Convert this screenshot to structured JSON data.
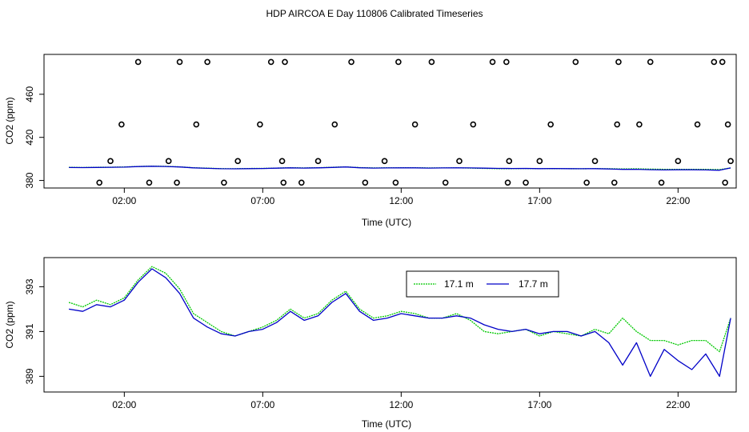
{
  "title": "HDP AIRCOA E  Day 110806  Calibrated Timeseries",
  "chart_data": [
    {
      "type": "scatter",
      "xlabel": "Time (UTC)",
      "ylabel": "CO2 (ppm)",
      "xlim": [
        -0.9,
        24.1
      ],
      "ylim": [
        373,
        497
      ],
      "xticks": [
        2,
        7,
        12,
        17,
        22
      ],
      "xtick_labels": [
        "02:00",
        "07:00",
        "12:00",
        "17:00",
        "22:00"
      ],
      "yticks": [
        380,
        420,
        460
      ],
      "yticks_labels": [
        "380",
        "420",
        "460"
      ],
      "grid": false,
      "series": [
        {
          "color": "#00c800",
          "x": [
            0,
            0.5,
            1,
            1.5,
            2,
            2.5,
            3,
            3.5,
            4,
            4.5,
            5,
            5.5,
            6,
            6.5,
            7,
            7.5,
            8,
            8.5,
            9,
            9.5,
            10,
            10.5,
            11,
            11.5,
            12,
            12.5,
            13,
            13.5,
            14,
            14.5,
            15,
            15.5,
            16,
            16.5,
            17,
            17.5,
            18,
            18.5,
            19,
            19.5,
            20,
            20.5,
            21,
            21.5,
            22,
            22.5,
            23,
            23.5,
            23.9
          ],
          "y": [
            392.2,
            392.0,
            392.2,
            392.3,
            392.5,
            393.0,
            393.3,
            393.1,
            392.6,
            391.8,
            391.4,
            391.0,
            390.9,
            391.1,
            391.2,
            391.5,
            391.8,
            391.6,
            391.8,
            392.2,
            392.6,
            391.9,
            391.6,
            391.7,
            391.8,
            391.8,
            391.6,
            391.6,
            391.7,
            391.5,
            391.2,
            391.0,
            391.0,
            391.1,
            390.9,
            391.0,
            390.9,
            390.8,
            391.0,
            390.9,
            390.7,
            390.8,
            390.5,
            390.4,
            390.3,
            390.4,
            390.3,
            390.1,
            391.6
          ]
        },
        {
          "color": "#0000c8",
          "x": [
            0,
            0.5,
            1,
            1.5,
            2,
            2.5,
            3,
            3.5,
            4,
            4.5,
            5,
            5.5,
            6,
            6.5,
            7,
            7.5,
            8,
            8.5,
            9,
            9.5,
            10,
            10.5,
            11,
            11.5,
            12,
            12.5,
            13,
            13.5,
            14,
            14.5,
            15,
            15.5,
            16,
            16.5,
            17,
            17.5,
            18,
            18.5,
            19,
            19.5,
            20,
            20.5,
            21,
            21.5,
            22,
            22.5,
            23,
            23.5,
            23.9
          ],
          "y": [
            392.0,
            391.9,
            392.1,
            392.2,
            392.4,
            392.9,
            393.2,
            393.0,
            392.5,
            391.7,
            391.3,
            390.9,
            390.8,
            391.0,
            391.1,
            391.4,
            391.7,
            391.5,
            391.7,
            392.1,
            392.5,
            391.8,
            391.5,
            391.6,
            391.7,
            391.7,
            391.5,
            391.6,
            391.7,
            391.6,
            391.4,
            391.2,
            391.1,
            391.2,
            391.0,
            391.1,
            391.0,
            390.9,
            391.0,
            390.7,
            390.3,
            390.4,
            390.0,
            389.8,
            389.9,
            389.9,
            389.8,
            389.5,
            391.6
          ]
        },
        {
          "marker": "open-circle",
          "x": [
            1.1,
            1.5,
            1.9,
            2.5,
            2.9,
            3.6,
            3.9,
            4.0,
            4.6,
            5.0,
            5.6,
            6.1,
            6.9,
            7.3,
            7.7,
            7.75,
            7.8,
            8.4,
            9.0,
            9.6,
            10.2,
            10.7,
            11.4,
            11.8,
            11.9,
            12.5,
            13.1,
            13.6,
            14.1,
            14.6,
            15.3,
            15.8,
            15.85,
            15.9,
            16.5,
            17.0,
            17.4,
            18.3,
            18.7,
            19.0,
            19.7,
            19.8,
            19.85,
            20.6,
            21.0,
            21.4,
            22.0,
            22.7,
            23.3,
            23.6,
            23.7,
            23.8,
            23.9
          ],
          "y": [
            378,
            398,
            432,
            490,
            378,
            398,
            378,
            490,
            432,
            490,
            378,
            398,
            432,
            490,
            398,
            378,
            490,
            378,
            398,
            432,
            490,
            378,
            398,
            378,
            490,
            432,
            490,
            378,
            398,
            432,
            490,
            490,
            378,
            398,
            378,
            398,
            432,
            490,
            378,
            398,
            378,
            432,
            490,
            432,
            490,
            378,
            398,
            432,
            490,
            490,
            378,
            432,
            398
          ]
        }
      ]
    },
    {
      "type": "line",
      "xlabel": "Time (UTC)",
      "ylabel": "CO2 (ppm)",
      "xlim": [
        -0.9,
        24.1
      ],
      "ylim": [
        388.3,
        394.3
      ],
      "xticks": [
        2,
        7,
        12,
        17,
        22
      ],
      "xtick_labels": [
        "02:00",
        "07:00",
        "12:00",
        "17:00",
        "22:00"
      ],
      "yticks": [
        389,
        391,
        393
      ],
      "yticks_labels": [
        "389",
        "391",
        "393"
      ],
      "grid": false,
      "legend_position": "top-center",
      "series": [
        {
          "name": "17.1 m",
          "color": "#00c800",
          "x": [
            0,
            0.5,
            1,
            1.5,
            2,
            2.5,
            3,
            3.5,
            4,
            4.5,
            5,
            5.5,
            6,
            6.5,
            7,
            7.5,
            8,
            8.5,
            9,
            9.5,
            10,
            10.5,
            11,
            11.5,
            12,
            12.5,
            13,
            13.5,
            14,
            14.5,
            15,
            15.5,
            16,
            16.5,
            17,
            17.5,
            18,
            18.5,
            19,
            19.5,
            20,
            20.5,
            21,
            21.5,
            22,
            22.5,
            23,
            23.5,
            23.9
          ],
          "y": [
            392.3,
            392.1,
            392.4,
            392.2,
            392.5,
            393.3,
            393.9,
            393.6,
            392.9,
            391.8,
            391.4,
            391.0,
            390.8,
            391.0,
            391.2,
            391.5,
            392.0,
            391.6,
            391.8,
            392.4,
            392.8,
            392.0,
            391.6,
            391.7,
            391.9,
            391.8,
            391.6,
            391.6,
            391.8,
            391.5,
            391.0,
            390.9,
            391.0,
            391.1,
            390.8,
            391.0,
            390.9,
            390.8,
            391.1,
            390.9,
            391.6,
            391.0,
            390.6,
            390.6,
            390.4,
            390.6,
            390.6,
            390.1,
            391.6
          ]
        },
        {
          "name": "17.7 m",
          "color": "#0000c8",
          "x": [
            0,
            0.5,
            1,
            1.5,
            2,
            2.5,
            3,
            3.5,
            4,
            4.5,
            5,
            5.5,
            6,
            6.5,
            7,
            7.5,
            8,
            8.5,
            9,
            9.5,
            10,
            10.5,
            11,
            11.5,
            12,
            12.5,
            13,
            13.5,
            14,
            14.5,
            15,
            15.5,
            16,
            16.5,
            17,
            17.5,
            18,
            18.5,
            19,
            19.5,
            20,
            20.5,
            21,
            21.5,
            22,
            22.5,
            23,
            23.5,
            23.9
          ],
          "y": [
            392.0,
            391.9,
            392.2,
            392.1,
            392.4,
            393.2,
            393.8,
            393.4,
            392.7,
            391.6,
            391.2,
            390.9,
            390.8,
            391.0,
            391.1,
            391.4,
            391.9,
            391.5,
            391.7,
            392.3,
            392.7,
            391.9,
            391.5,
            391.6,
            391.8,
            391.7,
            391.6,
            391.6,
            391.7,
            391.6,
            391.3,
            391.1,
            391.0,
            391.1,
            390.9,
            391.0,
            391.0,
            390.8,
            391.0,
            390.5,
            389.5,
            390.5,
            389.0,
            390.2,
            389.7,
            389.3,
            390.0,
            389.0,
            391.6
          ]
        }
      ]
    }
  ]
}
